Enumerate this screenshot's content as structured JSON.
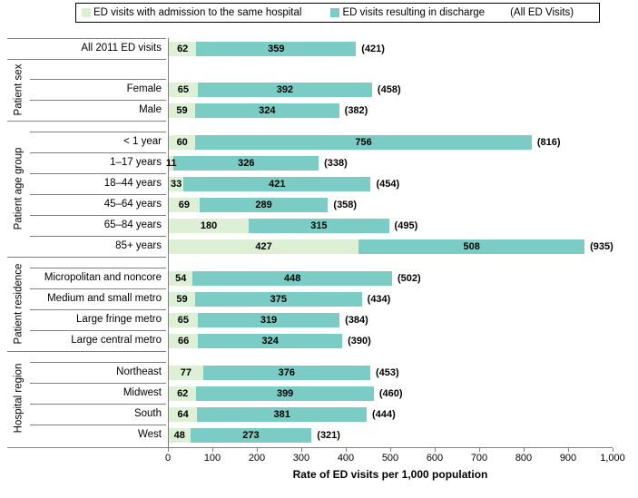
{
  "legend": {
    "items": [
      {
        "label": "ED visits with admission to the same hospital",
        "color": "#ddefd5"
      },
      {
        "label": "ED visits resulting in discharge",
        "color": "#7bccc4"
      }
    ],
    "note": "(All ED Visits)"
  },
  "chart_data": {
    "type": "bar",
    "orientation": "horizontal",
    "stacked": true,
    "title": "",
    "xlabel": "Rate of ED visits per 1,000 population",
    "ylabel": "",
    "xlim": [
      0,
      1000
    ],
    "grid": false,
    "legend_position": "top",
    "xticks": [
      0,
      100,
      200,
      300,
      400,
      500,
      600,
      700,
      800,
      900,
      1000
    ],
    "xtick_labels": [
      "0",
      "100",
      "200",
      "300",
      "400",
      "500",
      "600",
      "700",
      "800",
      "900",
      "1,000"
    ],
    "series_names": [
      "ED visits with admission to the same hospital",
      "ED visits resulting in discharge"
    ],
    "colors": {
      "admission": "#ddefd5",
      "discharge": "#7bccc4"
    },
    "groups": [
      {
        "name": "",
        "rows": [
          {
            "label": "All 2011 ED visits",
            "admission": 62,
            "discharge": 359,
            "total_label": "(421)"
          }
        ]
      },
      {
        "name": "Patient sex",
        "rows": [
          {
            "label": "Female",
            "admission": 65,
            "discharge": 392,
            "total_label": "(458)"
          },
          {
            "label": "Male",
            "admission": 59,
            "discharge": 324,
            "total_label": "(382)"
          }
        ]
      },
      {
        "name": "Patient age group",
        "rows": [
          {
            "label": "< 1 year",
            "admission": 60,
            "discharge": 756,
            "total_label": "(816)"
          },
          {
            "label": "1–17 years",
            "admission": 11,
            "discharge": 326,
            "total_label": "(338)"
          },
          {
            "label": "18–44 years",
            "admission": 33,
            "discharge": 421,
            "total_label": "(454)"
          },
          {
            "label": "45–64 years",
            "admission": 69,
            "discharge": 289,
            "total_label": "(358)"
          },
          {
            "label": "65–84 years",
            "admission": 180,
            "discharge": 315,
            "total_label": "(495)"
          },
          {
            "label": "85+ years",
            "admission": 427,
            "discharge": 508,
            "total_label": "(935)"
          }
        ]
      },
      {
        "name": "Patient residence",
        "rows": [
          {
            "label": "Micropolitan and noncore",
            "admission": 54,
            "discharge": 448,
            "total_label": "(502)"
          },
          {
            "label": "Medium and small metro",
            "admission": 59,
            "discharge": 375,
            "total_label": "(434)"
          },
          {
            "label": "Large fringe metro",
            "admission": 65,
            "discharge": 319,
            "total_label": "(384)"
          },
          {
            "label": "Large central metro",
            "admission": 66,
            "discharge": 324,
            "total_label": "(390)"
          }
        ]
      },
      {
        "name": "Hospital region",
        "rows": [
          {
            "label": "Northeast",
            "admission": 77,
            "discharge": 376,
            "total_label": "(453)"
          },
          {
            "label": "Midwest",
            "admission": 62,
            "discharge": 399,
            "total_label": "(460)"
          },
          {
            "label": "South",
            "admission": 64,
            "discharge": 381,
            "total_label": "(444)"
          },
          {
            "label": "West",
            "admission": 48,
            "discharge": 273,
            "total_label": "(321)"
          }
        ]
      }
    ]
  }
}
